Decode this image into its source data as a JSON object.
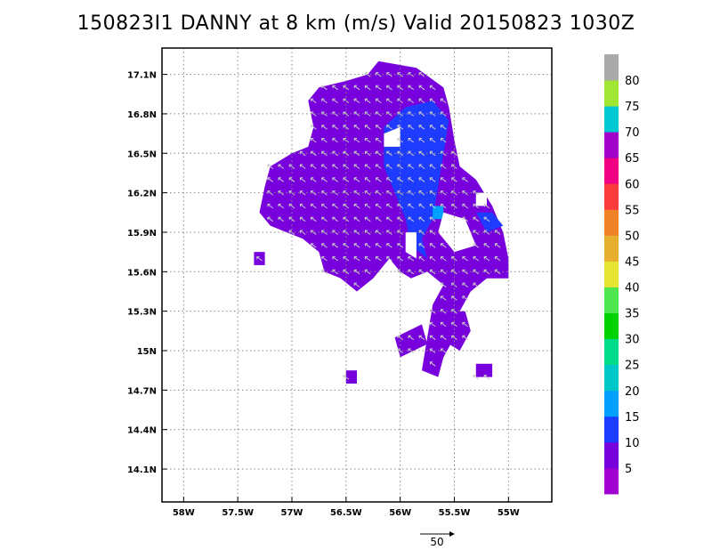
{
  "chart_data": {
    "type": "heatmap",
    "title": "150823I1 DANNY at 8 km (m/s) Valid 20150823 1030Z",
    "x_ticks": [
      "58W",
      "57.5W",
      "57W",
      "56.5W",
      "56W",
      "55.5W",
      "55W"
    ],
    "x_tick_values": [
      -58,
      -57.5,
      -57,
      -56.5,
      -56,
      -55.5,
      -55
    ],
    "y_ticks": [
      "17.1N",
      "16.8N",
      "16.5N",
      "16.2N",
      "15.9N",
      "15.6N",
      "15.3N",
      "15N",
      "14.7N",
      "14.4N",
      "14.1N"
    ],
    "y_tick_values": [
      17.1,
      16.8,
      16.5,
      16.2,
      15.9,
      15.6,
      15.3,
      15.0,
      14.7,
      14.4,
      14.1
    ],
    "xlim": [
      -58.2,
      -54.6
    ],
    "ylim": [
      13.85,
      17.3
    ],
    "grid": true,
    "colorbar": {
      "levels": [
        0,
        5,
        10,
        15,
        20,
        25,
        30,
        35,
        40,
        45,
        50,
        55,
        60,
        65,
        70,
        75,
        80,
        85
      ],
      "labels": [
        "5",
        "10",
        "15",
        "20",
        "25",
        "30",
        "35",
        "40",
        "45",
        "50",
        "55",
        "60",
        "65",
        "70",
        "75",
        "80"
      ],
      "colors": [
        "#a000d2",
        "#7800dc",
        "#1e3cff",
        "#00a0ff",
        "#00c8c8",
        "#00dc8c",
        "#00d200",
        "#50e650",
        "#e6e632",
        "#e6af2d",
        "#f08228",
        "#fa3c3c",
        "#f00082",
        "#a000c8",
        "#00c8d2",
        "#a0e632",
        "#aaaaaa"
      ]
    },
    "wind_vector_scale": "50",
    "regions": [
      {
        "speed": 5,
        "polygon": [
          [
            -56.2,
            17.2
          ],
          [
            -55.85,
            17.15
          ],
          [
            -55.6,
            17.0
          ],
          [
            -55.55,
            16.85
          ],
          [
            -55.5,
            16.6
          ],
          [
            -55.45,
            16.4
          ],
          [
            -55.3,
            16.3
          ],
          [
            -55.15,
            16.1
          ],
          [
            -55.05,
            15.9
          ],
          [
            -55.0,
            15.7
          ],
          [
            -55.0,
            15.55
          ],
          [
            -55.2,
            15.55
          ],
          [
            -55.35,
            15.45
          ],
          [
            -55.45,
            15.3
          ],
          [
            -55.5,
            15.1
          ],
          [
            -55.6,
            14.95
          ],
          [
            -55.65,
            14.8
          ],
          [
            -55.8,
            14.85
          ],
          [
            -55.75,
            15.1
          ],
          [
            -55.7,
            15.35
          ],
          [
            -55.6,
            15.5
          ],
          [
            -55.75,
            15.6
          ],
          [
            -55.9,
            15.55
          ],
          [
            -56.0,
            15.6
          ],
          [
            -56.1,
            15.7
          ],
          [
            -56.25,
            15.55
          ],
          [
            -56.4,
            15.45
          ],
          [
            -56.55,
            15.55
          ],
          [
            -56.7,
            15.6
          ],
          [
            -56.75,
            15.75
          ],
          [
            -56.9,
            15.85
          ],
          [
            -57.05,
            15.9
          ],
          [
            -57.2,
            15.95
          ],
          [
            -57.3,
            16.05
          ],
          [
            -57.25,
            16.25
          ],
          [
            -57.2,
            16.4
          ],
          [
            -57.0,
            16.5
          ],
          [
            -56.85,
            16.55
          ],
          [
            -56.8,
            16.7
          ],
          [
            -56.85,
            16.9
          ],
          [
            -56.75,
            17.0
          ],
          [
            -56.5,
            17.05
          ],
          [
            -56.3,
            17.1
          ]
        ]
      },
      {
        "speed": 5,
        "polygon": [
          [
            -55.6,
            15.3
          ],
          [
            -55.4,
            15.3
          ],
          [
            -55.35,
            15.15
          ],
          [
            -55.45,
            15.0
          ],
          [
            -55.55,
            15.05
          ]
        ]
      },
      {
        "speed": 5,
        "polygon": [
          [
            -56.05,
            15.1
          ],
          [
            -55.8,
            15.2
          ],
          [
            -55.75,
            15.05
          ],
          [
            -56.0,
            14.95
          ]
        ]
      },
      {
        "speed": 5,
        "polygon": [
          [
            -55.3,
            14.9
          ],
          [
            -55.15,
            14.9
          ],
          [
            -55.15,
            14.8
          ],
          [
            -55.3,
            14.8
          ]
        ]
      },
      {
        "speed": 5,
        "polygon": [
          [
            -56.5,
            14.85
          ],
          [
            -56.4,
            14.85
          ],
          [
            -56.4,
            14.75
          ],
          [
            -56.5,
            14.75
          ]
        ]
      },
      {
        "speed": 5,
        "polygon": [
          [
            -57.35,
            15.75
          ],
          [
            -57.25,
            15.75
          ],
          [
            -57.25,
            15.65
          ],
          [
            -57.35,
            15.65
          ]
        ]
      },
      {
        "speed": 10,
        "polygon": [
          [
            -56.15,
            16.7
          ],
          [
            -55.95,
            16.85
          ],
          [
            -55.7,
            16.9
          ],
          [
            -55.55,
            16.75
          ],
          [
            -55.6,
            16.5
          ],
          [
            -55.65,
            16.25
          ],
          [
            -55.7,
            16.0
          ],
          [
            -55.8,
            15.85
          ],
          [
            -55.75,
            15.7
          ],
          [
            -55.9,
            15.8
          ],
          [
            -55.95,
            16.0
          ],
          [
            -56.05,
            16.2
          ],
          [
            -56.15,
            16.4
          ]
        ]
      },
      {
        "speed": 10,
        "polygon": [
          [
            -55.3,
            16.05
          ],
          [
            -55.15,
            16.05
          ],
          [
            -55.05,
            15.95
          ],
          [
            -55.2,
            15.9
          ]
        ]
      },
      {
        "speed": 15,
        "polygon": [
          [
            -55.7,
            16.1
          ],
          [
            -55.6,
            16.1
          ],
          [
            -55.6,
            16.0
          ],
          [
            -55.7,
            16.0
          ]
        ]
      }
    ],
    "voids": [
      {
        "polygon": [
          [
            -56.15,
            16.65
          ],
          [
            -56.0,
            16.7
          ],
          [
            -56.0,
            16.55
          ],
          [
            -56.15,
            16.55
          ]
        ]
      },
      {
        "polygon": [
          [
            -55.6,
            16.05
          ],
          [
            -55.4,
            16.0
          ],
          [
            -55.3,
            15.8
          ],
          [
            -55.5,
            15.75
          ],
          [
            -55.65,
            15.9
          ]
        ]
      },
      {
        "polygon": [
          [
            -55.95,
            15.9
          ],
          [
            -55.85,
            15.9
          ],
          [
            -55.85,
            15.7
          ],
          [
            -55.95,
            15.75
          ]
        ]
      },
      {
        "polygon": [
          [
            -55.3,
            16.2
          ],
          [
            -55.2,
            16.2
          ],
          [
            -55.2,
            16.1
          ],
          [
            -55.3,
            16.1
          ]
        ]
      }
    ]
  }
}
